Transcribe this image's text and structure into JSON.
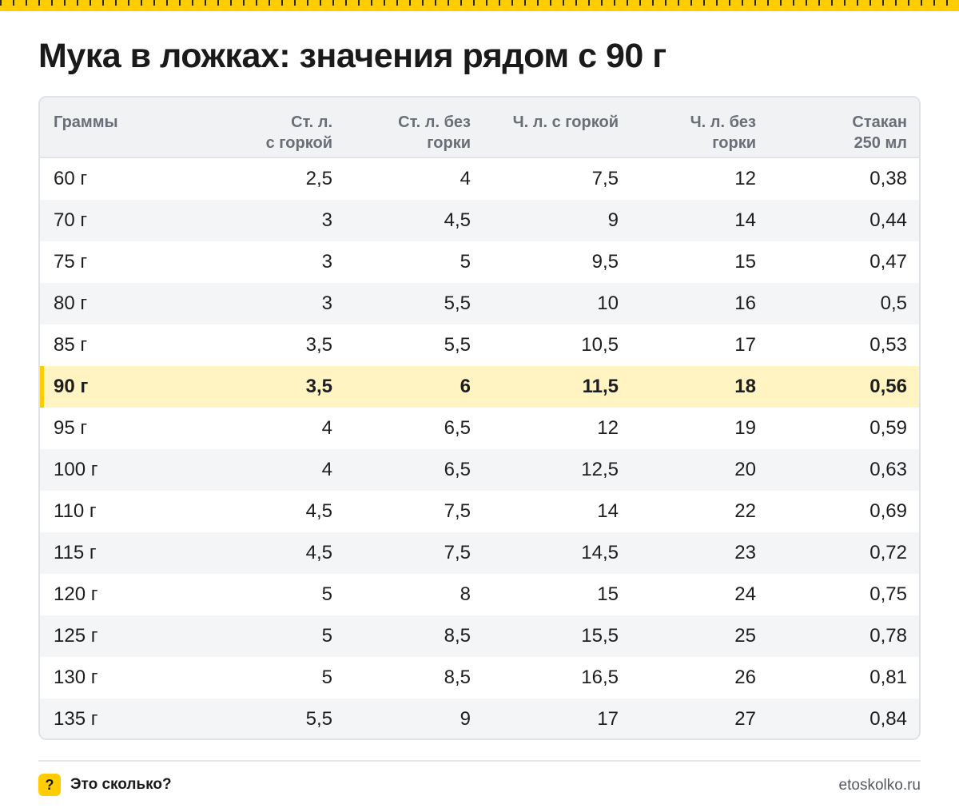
{
  "title": "Мука в ложках: значения рядом с 90 г",
  "table": {
    "headers": [
      "Граммы",
      "Ст. л.\nс горкой",
      "Ст. л. без\nгорки",
      "Ч. л. с горкой",
      "Ч. л. без\nгорки",
      "Стакан\n250 мл"
    ],
    "rows": [
      {
        "cells": [
          "60 г",
          "2,5",
          "4",
          "7,5",
          "12",
          "0,38"
        ]
      },
      {
        "cells": [
          "70 г",
          "3",
          "4,5",
          "9",
          "14",
          "0,44"
        ]
      },
      {
        "cells": [
          "75 г",
          "3",
          "5",
          "9,5",
          "15",
          "0,47"
        ]
      },
      {
        "cells": [
          "80 г",
          "3",
          "5,5",
          "10",
          "16",
          "0,5"
        ]
      },
      {
        "cells": [
          "85 г",
          "3,5",
          "5,5",
          "10,5",
          "17",
          "0,53"
        ]
      },
      {
        "cells": [
          "90 г",
          "3,5",
          "6",
          "11,5",
          "18",
          "0,56"
        ],
        "highlight": true
      },
      {
        "cells": [
          "95 г",
          "4",
          "6,5",
          "12",
          "19",
          "0,59"
        ]
      },
      {
        "cells": [
          "100 г",
          "4",
          "6,5",
          "12,5",
          "20",
          "0,63"
        ]
      },
      {
        "cells": [
          "110 г",
          "4,5",
          "7,5",
          "14",
          "22",
          "0,69"
        ]
      },
      {
        "cells": [
          "115 г",
          "4,5",
          "7,5",
          "14,5",
          "23",
          "0,72"
        ]
      },
      {
        "cells": [
          "120 г",
          "5",
          "8",
          "15",
          "24",
          "0,75"
        ]
      },
      {
        "cells": [
          "125 г",
          "5",
          "8,5",
          "15,5",
          "25",
          "0,78"
        ]
      },
      {
        "cells": [
          "130 г",
          "5",
          "8,5",
          "16,5",
          "26",
          "0,81"
        ]
      },
      {
        "cells": [
          "135 г",
          "5,5",
          "9",
          "17",
          "27",
          "0,84"
        ]
      }
    ]
  },
  "footer": {
    "badge_glyph": "?",
    "brand": "Это сколько?",
    "site": "etoskolko.ru"
  },
  "colors": {
    "accent": "#ffcc00",
    "highlight_row": "#fff4c2",
    "header_bg": "#f1f2f4"
  }
}
